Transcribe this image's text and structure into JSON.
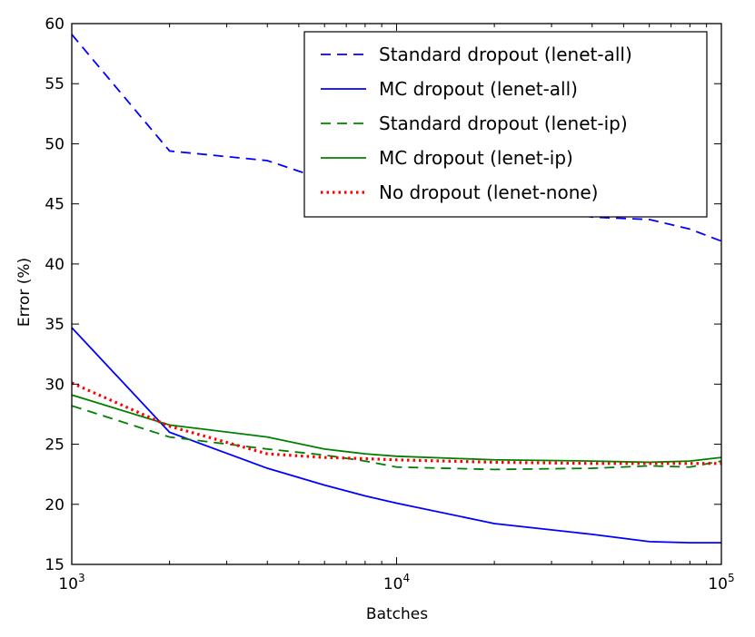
{
  "chart_data": {
    "type": "line",
    "xscale": "log",
    "xlabel": "Batches",
    "ylabel": "Error (%)",
    "xlim": [
      1000,
      100000
    ],
    "ylim": [
      15,
      60
    ],
    "x_ticks": [
      {
        "value": 1000,
        "base": "10",
        "exp": "3"
      },
      {
        "value": 10000,
        "base": "10",
        "exp": "4"
      },
      {
        "value": 100000,
        "base": "10",
        "exp": "5"
      }
    ],
    "y_ticks": [
      15,
      20,
      25,
      30,
      35,
      40,
      45,
      50,
      55,
      60
    ],
    "legend_position": "top-right",
    "series": [
      {
        "name": "Standard dropout (lenet-all)",
        "color": "#0000ff",
        "style": "dashed",
        "x": [
          1000,
          2000,
          4000,
          6000,
          8000,
          10000,
          20000,
          40000,
          60000,
          80000,
          100000
        ],
        "y": [
          59.1,
          49.4,
          48.6,
          47.0,
          46.5,
          46.0,
          45.2,
          43.9,
          43.7,
          42.9,
          41.9
        ]
      },
      {
        "name": "MC dropout (lenet-all)",
        "color": "#0000ff",
        "style": "solid",
        "x": [
          1000,
          2000,
          4000,
          6000,
          8000,
          10000,
          20000,
          40000,
          60000,
          80000,
          100000
        ],
        "y": [
          34.7,
          26.0,
          23.0,
          21.6,
          20.7,
          20.1,
          18.4,
          17.5,
          16.9,
          16.8,
          16.8
        ]
      },
      {
        "name": "Standard dropout (lenet-ip)",
        "color": "#008000",
        "style": "dashed",
        "x": [
          1000,
          2000,
          4000,
          6000,
          8000,
          10000,
          20000,
          40000,
          60000,
          80000,
          100000
        ],
        "y": [
          28.2,
          25.6,
          24.6,
          24.1,
          23.6,
          23.1,
          22.9,
          23.0,
          23.2,
          23.1,
          23.6
        ]
      },
      {
        "name": "MC dropout (lenet-ip)",
        "color": "#008000",
        "style": "solid",
        "x": [
          1000,
          2000,
          4000,
          6000,
          8000,
          10000,
          20000,
          40000,
          60000,
          80000,
          100000
        ],
        "y": [
          29.1,
          26.6,
          25.6,
          24.6,
          24.2,
          24.0,
          23.7,
          23.6,
          23.5,
          23.6,
          23.9
        ]
      },
      {
        "name": "No dropout (lenet-none)",
        "color": "#ff0000",
        "style": "dotted",
        "x": [
          1000,
          2000,
          4000,
          6000,
          8000,
          10000,
          20000,
          40000,
          60000,
          80000,
          100000
        ],
        "y": [
          30.1,
          26.5,
          24.2,
          23.9,
          23.8,
          23.7,
          23.5,
          23.4,
          23.4,
          23.4,
          23.4
        ]
      }
    ]
  }
}
